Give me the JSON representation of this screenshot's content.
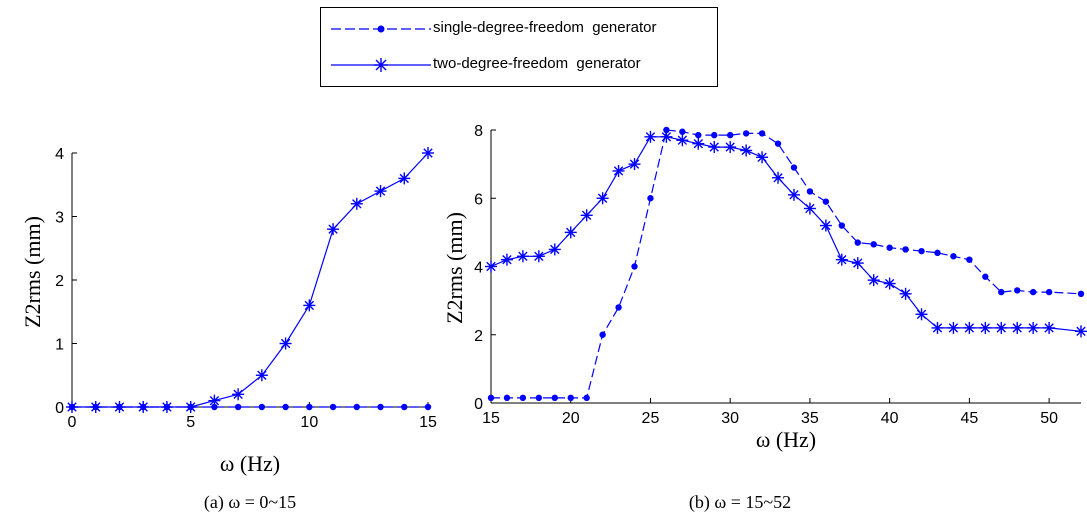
{
  "legend": {
    "series1_label": "single-degree-freedom  generator",
    "series2_label": "two-degree-freedom  generator"
  },
  "colors": {
    "series": "#0000ff",
    "axis": "#000000"
  },
  "chart_data": [
    {
      "type": "line",
      "xlabel": "ω (Hz)",
      "ylabel": "Z2rms (mm)",
      "caption": "(a)  ω = 0~15",
      "xlim": [
        0,
        15
      ],
      "ylim": [
        0,
        4
      ],
      "xticks": [
        0,
        5,
        10,
        15
      ],
      "yticks": [
        0,
        1,
        2,
        3,
        4
      ],
      "series": [
        {
          "name": "single-degree-freedom  generator",
          "marker": "dot",
          "x": [
            0,
            1,
            2,
            3,
            4,
            5,
            6,
            7,
            8,
            9,
            10,
            11,
            12,
            13,
            14,
            15
          ],
          "y": [
            0,
            0,
            0,
            0,
            0,
            0,
            0,
            0,
            0,
            0,
            0,
            0,
            0,
            0,
            0,
            0
          ]
        },
        {
          "name": "two-degree-freedom  generator",
          "marker": "star",
          "x": [
            0,
            1,
            2,
            3,
            4,
            5,
            6,
            7,
            8,
            9,
            10,
            11,
            12,
            13,
            14,
            15
          ],
          "y": [
            0,
            0,
            0,
            0,
            0,
            0,
            0.1,
            0.2,
            0.5,
            1.0,
            1.6,
            2.8,
            3.2,
            3.4,
            3.6,
            4.0
          ]
        }
      ]
    },
    {
      "type": "line",
      "xlabel": "ω (Hz)",
      "ylabel": "Z2rms (mm)",
      "caption": "(b)  ω = 15~52",
      "xlim": [
        15,
        52
      ],
      "ylim": [
        0,
        8
      ],
      "xticks": [
        15,
        20,
        25,
        30,
        35,
        40,
        45,
        50
      ],
      "yticks": [
        0,
        2,
        4,
        6,
        8
      ],
      "series": [
        {
          "name": "single-degree-freedom  generator",
          "marker": "dot",
          "x": [
            15,
            16,
            17,
            18,
            19,
            20,
            21,
            22,
            23,
            24,
            25,
            26,
            27,
            28,
            29,
            30,
            31,
            32,
            33,
            34,
            35,
            36,
            37,
            38,
            39,
            40,
            41,
            42,
            43,
            44,
            45,
            46,
            47,
            48,
            49,
            50,
            52
          ],
          "y": [
            0.15,
            0.15,
            0.15,
            0.15,
            0.15,
            0.15,
            0.15,
            2.0,
            2.8,
            4.0,
            6.0,
            8.0,
            7.95,
            7.85,
            7.85,
            7.85,
            7.9,
            7.9,
            7.6,
            6.9,
            6.2,
            5.9,
            5.2,
            4.7,
            4.65,
            4.55,
            4.5,
            4.45,
            4.4,
            4.3,
            4.2,
            3.7,
            3.25,
            3.3,
            3.25,
            3.25,
            3.2
          ]
        },
        {
          "name": "two-degree-freedom  generator",
          "marker": "star",
          "x": [
            15,
            16,
            17,
            18,
            19,
            20,
            21,
            22,
            23,
            24,
            25,
            26,
            27,
            28,
            29,
            30,
            31,
            32,
            33,
            34,
            35,
            36,
            37,
            38,
            39,
            40,
            41,
            42,
            43,
            44,
            45,
            46,
            47,
            48,
            49,
            50,
            52
          ],
          "y": [
            4.0,
            4.2,
            4.3,
            4.3,
            4.5,
            5.0,
            5.5,
            6.0,
            6.8,
            7.0,
            7.8,
            7.8,
            7.7,
            7.6,
            7.5,
            7.5,
            7.4,
            7.2,
            6.6,
            6.1,
            5.7,
            5.2,
            4.2,
            4.1,
            3.6,
            3.5,
            3.2,
            2.6,
            2.2,
            2.2,
            2.2,
            2.2,
            2.2,
            2.2,
            2.2,
            2.2,
            2.1
          ]
        }
      ]
    }
  ]
}
